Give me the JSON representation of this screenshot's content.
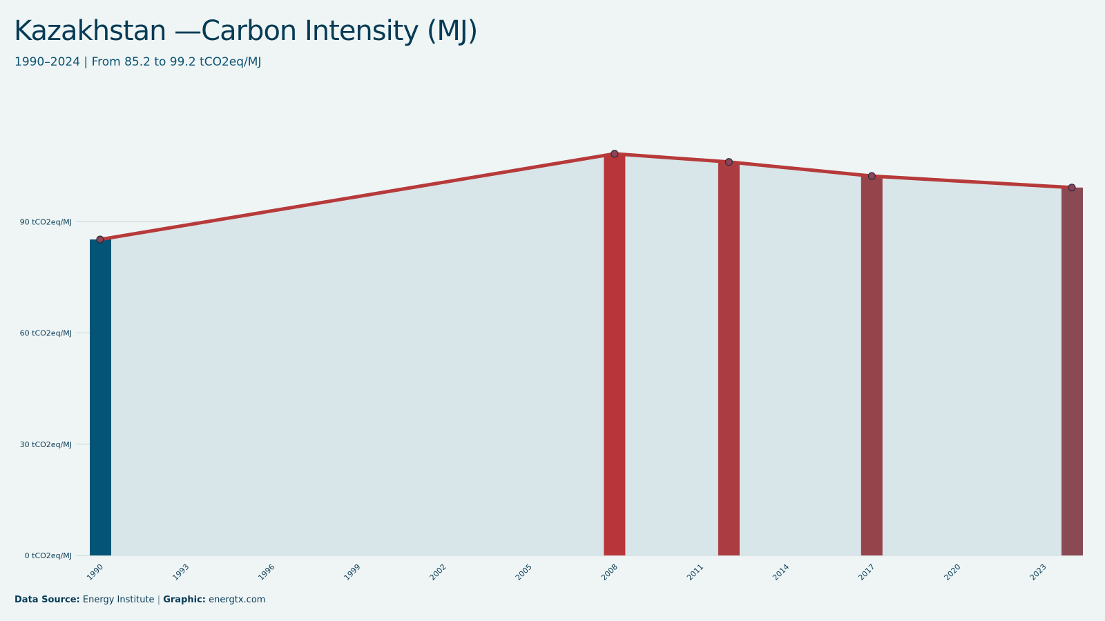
{
  "header": {
    "title": "Kazakhstan —Carbon Intensity (MJ)",
    "subtitle": "1990–2024 | From 85.2 to 99.2 tCO2eq/MJ"
  },
  "footer": {
    "source_key": "Data Source:",
    "source_value": "Energy Institute",
    "separator": "|",
    "graphic_key": "Graphic:",
    "graphic_value": "energtx.com"
  },
  "colors": {
    "background": "#eff5f5",
    "area_fill": "#d8e5e9",
    "line": "#b73a3a",
    "gridline": "#c5d3d9",
    "text": "#073b55",
    "point_fill": "#8c4458",
    "point_stroke": "#2b2b3b"
  },
  "chart_data": {
    "type": "line",
    "title": "Kazakhstan —Carbon Intensity (MJ)",
    "subtitle": "1990–2024 | From 85.2 to 99.2 tCO2eq/MJ",
    "x": [
      1990,
      2008,
      2012,
      2017,
      2024
    ],
    "series": [
      {
        "values": [
          85.2,
          108.3,
          106.1,
          102.3,
          99.2
        ]
      }
    ],
    "highlight_bars": [
      {
        "x": 1990,
        "value": 85.2,
        "color": "#035476"
      },
      {
        "x": 2008,
        "value": 108.3,
        "color": "#b83539"
      },
      {
        "x": 2012,
        "value": 106.1,
        "color": "#aa3c42"
      },
      {
        "x": 2017,
        "value": 102.3,
        "color": "#96444b"
      },
      {
        "x": 2024,
        "value": 99.2,
        "color": "#894a54"
      }
    ],
    "area_under_line": true,
    "xlim": [
      1990,
      2024
    ],
    "ylim": [
      0,
      120
    ],
    "x_ticks": [
      "1990",
      "1993",
      "1996",
      "1999",
      "2002",
      "2005",
      "2008",
      "2011",
      "2014",
      "2017",
      "2020",
      "2023"
    ],
    "y_ticks": [
      {
        "value": 0,
        "label": "0 tCO2eq/MJ"
      },
      {
        "value": 30,
        "label": "30 tCO2eq/MJ"
      },
      {
        "value": 60,
        "label": "60 tCO2eq/MJ"
      },
      {
        "value": 90,
        "label": "90 tCO2eq/MJ"
      }
    ],
    "grid": "horizontal",
    "legend": "none"
  }
}
